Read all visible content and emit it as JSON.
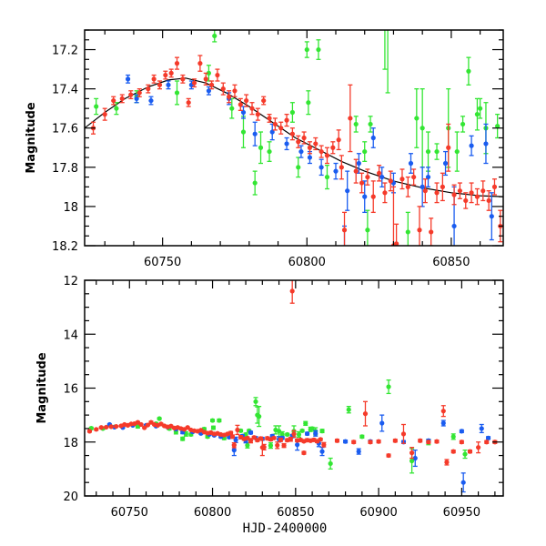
{
  "chart_data": [
    {
      "type": "scatter",
      "panel": "top",
      "title": "",
      "xlabel": "",
      "ylabel": "Magnitude",
      "xlim": [
        60723,
        60868
      ],
      "ylim": [
        18.2,
        17.1
      ],
      "y_inverted": true,
      "xticks": [
        60750,
        60800,
        60850
      ],
      "xtick_labels": [
        "60750",
        "60800",
        "60850"
      ],
      "yticks": [
        17.2,
        17.4,
        17.6,
        17.8,
        18.0,
        18.2
      ],
      "ytick_labels": [
        "17.2",
        "17.4",
        "17.6",
        "17.8",
        "18",
        "18.2"
      ],
      "grid": false,
      "model_curve": {
        "name": "model",
        "color": "#000000",
        "points": [
          [
            60723,
            17.6
          ],
          [
            60730,
            17.52
          ],
          [
            60737,
            17.45
          ],
          [
            60745,
            17.39
          ],
          [
            60752,
            17.355
          ],
          [
            60758,
            17.345
          ],
          [
            60765,
            17.37
          ],
          [
            60772,
            17.42
          ],
          [
            60780,
            17.49
          ],
          [
            60788,
            17.57
          ],
          [
            60796,
            17.65
          ],
          [
            60804,
            17.71
          ],
          [
            60812,
            17.77
          ],
          [
            60820,
            17.82
          ],
          [
            60830,
            17.87
          ],
          [
            60840,
            17.905
          ],
          [
            60850,
            17.93
          ],
          [
            60860,
            17.945
          ],
          [
            60868,
            17.95
          ]
        ]
      }
    },
    {
      "type": "scatter",
      "panel": "bottom",
      "title": "",
      "xlabel": "HJD-2400000",
      "ylabel": "Magnitude",
      "xlim": [
        60723,
        60975
      ],
      "ylim": [
        20,
        12
      ],
      "y_inverted": true,
      "xticks": [
        60750,
        60800,
        60850,
        60900,
        60950
      ],
      "xtick_labels": [
        "60750",
        "60800",
        "60850",
        "60900",
        "60950"
      ],
      "yticks": [
        12,
        14,
        16,
        18,
        20
      ],
      "ytick_labels": [
        "12",
        "14",
        "16",
        "18",
        "20"
      ],
      "grid": false
    }
  ],
  "series": [
    {
      "name": "green",
      "color": "#33e633",
      "points": [
        [
          60727,
          17.49,
          0.04
        ],
        [
          60734,
          17.5,
          0.03
        ],
        [
          60741,
          17.44,
          0.03
        ],
        [
          60755,
          17.42,
          0.06
        ],
        [
          60766,
          17.32,
          0.04
        ],
        [
          60768,
          17.13,
          0.03
        ],
        [
          60774,
          17.5,
          0.05
        ],
        [
          60778,
          17.62,
          0.08
        ],
        [
          60782,
          17.88,
          0.06
        ],
        [
          60784,
          17.7,
          0.08
        ],
        [
          60787,
          17.72,
          0.05
        ],
        [
          60795,
          17.52,
          0.05
        ],
        [
          60797,
          17.8,
          0.05
        ],
        [
          60800,
          17.2,
          0.04
        ],
        [
          60800.5,
          17.47,
          0.06
        ],
        [
          60807,
          17.85,
          0.06
        ],
        [
          60817,
          17.58,
          0.04
        ],
        [
          60820,
          17.72,
          0.05
        ],
        [
          60821,
          18.12,
          0.1
        ],
        [
          60822,
          17.58,
          0.04
        ],
        [
          60828,
          17.05,
          0.37
        ],
        [
          60835,
          18.13,
          0.1
        ],
        [
          60838,
          17.55,
          0.15
        ],
        [
          60840,
          17.6,
          0.2
        ],
        [
          60842,
          17.72,
          0.1
        ],
        [
          60845,
          17.72,
          0.04
        ],
        [
          60849,
          17.6,
          0.2
        ],
        [
          60852,
          17.72,
          0.1
        ],
        [
          60854,
          17.58,
          0.04
        ],
        [
          60856,
          17.31,
          0.07
        ],
        [
          60859,
          17.53,
          0.08
        ],
        [
          60862,
          17.6,
          0.13
        ],
        [
          60866,
          17.59,
          0.06
        ],
        [
          60826,
          16.5,
          0.15
        ],
        [
          60827,
          17.0,
          0.3
        ],
        [
          60804,
          17.2,
          0.05
        ],
        [
          60860,
          17.5,
          0.05
        ],
        [
          60871,
          18.8,
          0.2
        ],
        [
          60882,
          16.8,
          0.12
        ],
        [
          60890,
          17.8,
          0.05
        ],
        [
          60906,
          15.95,
          0.25
        ],
        [
          60920,
          18.7,
          0.45
        ],
        [
          60930,
          18.0,
          0.1
        ],
        [
          60945,
          17.8,
          0.1
        ],
        [
          60952,
          18.45,
          0.15
        ]
      ]
    },
    {
      "name": "blue",
      "color": "#1a5cf0",
      "points": [
        [
          60738,
          17.35,
          0.02
        ],
        [
          60741,
          17.45,
          0.02
        ],
        [
          60746,
          17.46,
          0.02
        ],
        [
          60752,
          17.38,
          0.02
        ],
        [
          60760,
          17.38,
          0.02
        ],
        [
          60766,
          17.41,
          0.02
        ],
        [
          60773,
          17.45,
          0.03
        ],
        [
          60778,
          17.52,
          0.03
        ],
        [
          60782,
          17.63,
          0.06
        ],
        [
          60788,
          17.62,
          0.04
        ],
        [
          60793,
          17.68,
          0.03
        ],
        [
          60798,
          17.72,
          0.03
        ],
        [
          60801,
          17.75,
          0.03
        ],
        [
          60805,
          17.8,
          0.04
        ],
        [
          60810,
          17.82,
          0.04
        ],
        [
          60814,
          17.92,
          0.1
        ],
        [
          60818,
          17.78,
          0.05
        ],
        [
          60820,
          17.95,
          0.08
        ],
        [
          60823,
          17.65,
          0.05
        ],
        [
          60826,
          17.85,
          0.05
        ],
        [
          60830,
          17.88,
          0.05
        ],
        [
          60836,
          17.78,
          0.05
        ],
        [
          60840,
          17.9,
          0.1
        ],
        [
          60842,
          17.85,
          0.05
        ],
        [
          60848,
          17.78,
          0.06
        ],
        [
          60851,
          18.1,
          0.2
        ],
        [
          60857,
          17.69,
          0.05
        ],
        [
          60862,
          17.68,
          0.1
        ],
        [
          60864,
          18.05,
          0.12
        ],
        [
          60813,
          18.3,
          0.2
        ],
        [
          60866,
          18.35,
          0.15
        ],
        [
          60880,
          17.98,
          0.05
        ],
        [
          60888,
          18.35,
          0.1
        ],
        [
          60895,
          17.98,
          0.05
        ],
        [
          60902,
          17.3,
          0.3
        ],
        [
          60915,
          18.0,
          0.05
        ],
        [
          60922,
          18.6,
          0.3
        ],
        [
          60930,
          17.95,
          0.05
        ],
        [
          60939,
          17.3,
          0.1
        ],
        [
          60950,
          17.6,
          0.05
        ],
        [
          60951,
          19.5,
          0.35
        ],
        [
          60962,
          17.5,
          0.15
        ],
        [
          60966,
          17.85,
          0.05
        ]
      ]
    },
    {
      "name": "red",
      "color": "#f53a2a",
      "points": [
        [
          60726,
          17.6,
          0.03
        ],
        [
          60730,
          17.53,
          0.03
        ],
        [
          60733,
          17.46,
          0.02
        ],
        [
          60736,
          17.45,
          0.02
        ],
        [
          60739,
          17.43,
          0.02
        ],
        [
          60742,
          17.42,
          0.02
        ],
        [
          60745,
          17.4,
          0.02
        ],
        [
          60747,
          17.35,
          0.02
        ],
        [
          60749,
          17.38,
          0.02
        ],
        [
          60751,
          17.33,
          0.02
        ],
        [
          60753,
          17.32,
          0.02
        ],
        [
          60755,
          17.27,
          0.03
        ],
        [
          60757,
          17.35,
          0.02
        ],
        [
          60759,
          17.47,
          0.02
        ],
        [
          60761,
          17.37,
          0.02
        ],
        [
          60763,
          17.27,
          0.04
        ],
        [
          60765,
          17.35,
          0.03
        ],
        [
          60767,
          17.38,
          0.02
        ],
        [
          60769,
          17.33,
          0.03
        ],
        [
          60771,
          17.4,
          0.03
        ],
        [
          60773,
          17.44,
          0.03
        ],
        [
          60775,
          17.41,
          0.03
        ],
        [
          60777,
          17.48,
          0.03
        ],
        [
          60779,
          17.46,
          0.03
        ],
        [
          60781,
          17.5,
          0.03
        ],
        [
          60783,
          17.53,
          0.03
        ],
        [
          60785,
          17.46,
          0.02
        ],
        [
          60787,
          17.55,
          0.02
        ],
        [
          60789,
          17.58,
          0.03
        ],
        [
          60791,
          17.6,
          0.03
        ],
        [
          60793,
          17.56,
          0.03
        ],
        [
          60795,
          17.63,
          0.03
        ],
        [
          60797,
          17.67,
          0.03
        ],
        [
          60799,
          17.65,
          0.03
        ],
        [
          60801,
          17.7,
          0.03
        ],
        [
          60803,
          17.68,
          0.03
        ],
        [
          60805,
          17.72,
          0.03
        ],
        [
          60807,
          17.74,
          0.04
        ],
        [
          60809,
          17.7,
          0.03
        ],
        [
          60811,
          17.66,
          0.05
        ],
        [
          60812,
          17.8,
          0.06
        ],
        [
          60813,
          18.12,
          0.09
        ],
        [
          60815,
          17.55,
          0.17
        ],
        [
          60817,
          17.82,
          0.06
        ],
        [
          60819,
          17.88,
          0.05
        ],
        [
          60821,
          17.85,
          0.04
        ],
        [
          60823,
          17.95,
          0.08
        ],
        [
          60825,
          17.83,
          0.04
        ],
        [
          60827,
          17.93,
          0.05
        ],
        [
          60829,
          17.87,
          0.05
        ],
        [
          60831,
          18.19,
          0.1
        ],
        [
          60833,
          17.86,
          0.05
        ],
        [
          60835,
          17.9,
          0.05
        ],
        [
          60837,
          17.85,
          0.04
        ],
        [
          60839,
          18.12,
          0.12
        ],
        [
          60841,
          17.92,
          0.06
        ],
        [
          60843,
          18.13,
          0.07
        ],
        [
          60845,
          17.93,
          0.05
        ],
        [
          60847,
          17.9,
          0.07
        ],
        [
          60849,
          17.7,
          0.12
        ],
        [
          60851,
          17.94,
          0.05
        ],
        [
          60853,
          17.92,
          0.04
        ],
        [
          60855,
          17.97,
          0.04
        ],
        [
          60857,
          17.93,
          0.05
        ],
        [
          60859,
          17.95,
          0.04
        ],
        [
          60861,
          17.92,
          0.05
        ],
        [
          60863,
          17.97,
          0.05
        ],
        [
          60865,
          17.9,
          0.04
        ],
        [
          60867,
          18.1,
          0.08
        ],
        [
          60848,
          12.4,
          0.45
        ],
        [
          60830,
          18.2,
          0.3
        ],
        [
          60855,
          18.4,
          0.05
        ],
        [
          60875,
          17.95,
          0.05
        ],
        [
          60885,
          18.0,
          0.05
        ],
        [
          60892,
          16.95,
          0.45
        ],
        [
          60895,
          18.0,
          0.05
        ],
        [
          60900,
          17.98,
          0.05
        ],
        [
          60906,
          18.5,
          0.05
        ],
        [
          60910,
          17.95,
          0.05
        ],
        [
          60915,
          17.7,
          0.35
        ],
        [
          60920,
          18.4,
          0.2
        ],
        [
          60925,
          17.95,
          0.05
        ],
        [
          60930,
          18.0,
          0.05
        ],
        [
          60935,
          17.98,
          0.05
        ],
        [
          60939,
          16.85,
          0.2
        ],
        [
          60941,
          18.75,
          0.1
        ],
        [
          60945,
          18.35,
          0.05
        ],
        [
          60950,
          18.0,
          0.05
        ],
        [
          60955,
          18.35,
          0.05
        ],
        [
          60960,
          18.2,
          0.2
        ],
        [
          60965,
          18.0,
          0.05
        ],
        [
          60970,
          18.0,
          0.05
        ]
      ]
    }
  ]
}
